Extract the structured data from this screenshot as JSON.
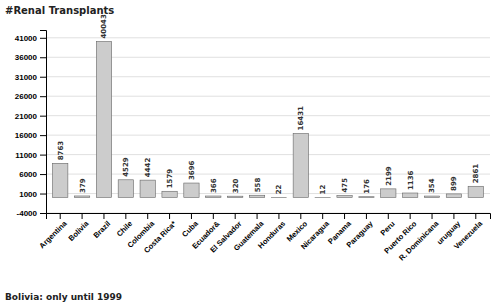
{
  "chart_data": {
    "type": "bar",
    "ylabel": "#Renal Transplants",
    "footnote": "Bolivia: only until 1999",
    "categories": [
      "Argentina",
      "Bolivia",
      "Brazil",
      "Chile",
      "Colombia",
      "Costa Rica*",
      "Cuba",
      "Ecuador&",
      "El Salvador",
      "Guatemala",
      "Honduras",
      "Mexico",
      "Nicaragua",
      "Panama",
      "Paraguay",
      "Peru",
      "Puerto Rico",
      "R. Dominicana",
      "uruguay",
      "Venezuela"
    ],
    "values": [
      8763,
      379,
      40043,
      4529,
      4442,
      1579,
      3696,
      366,
      320,
      558,
      22,
      16431,
      12,
      475,
      176,
      2199,
      1136,
      354,
      899,
      2861
    ],
    "color": "#cccccc",
    "ylim": [
      -4000,
      43000
    ],
    "yticks": [
      -4000,
      1000,
      6000,
      11000,
      16000,
      21000,
      26000,
      31000,
      36000,
      41000
    ],
    "grid": true,
    "data_labels": true
  }
}
